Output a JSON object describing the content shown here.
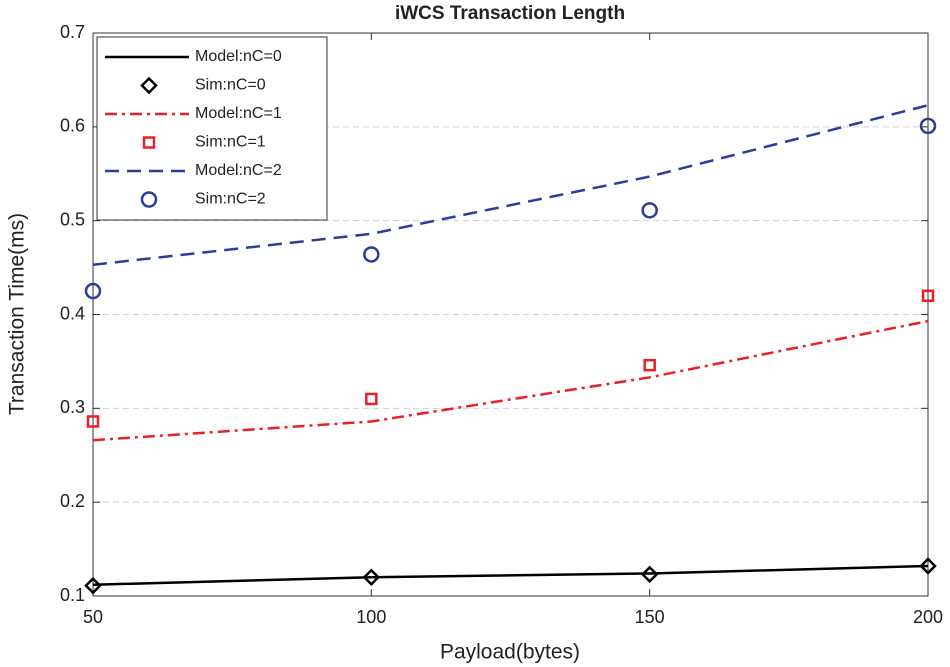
{
  "chart_data": {
    "type": "line",
    "title": "iWCS Transaction Length",
    "xlabel": "Payload(bytes)",
    "ylabel": "Transaction Time(ms)",
    "x": [
      50,
      100,
      150,
      200
    ],
    "xlim": [
      50,
      200
    ],
    "xticks": [
      50,
      100,
      150,
      200
    ],
    "ylim": [
      0.1,
      0.7
    ],
    "yticks": [
      0.1,
      0.2,
      0.3,
      0.4,
      0.5,
      0.6,
      0.7
    ],
    "grid": "y",
    "legend": "upper left",
    "series": [
      {
        "name": "Model:nC=0",
        "color": "#000000",
        "style": "solid",
        "values": [
          0.112,
          0.12,
          0.124,
          0.132
        ]
      },
      {
        "name": "Sim:nC=0",
        "color": "#000000",
        "marker": "diamond",
        "values": [
          0.111,
          0.12,
          0.123,
          0.132
        ]
      },
      {
        "name": "Model:nC=1",
        "color": "#e8202a",
        "style": "dashdot",
        "values": [
          0.266,
          0.286,
          0.333,
          0.393
        ]
      },
      {
        "name": "Sim:nC=1",
        "color": "#e8202a",
        "marker": "square",
        "values": [
          0.286,
          0.31,
          0.346,
          0.42
        ]
      },
      {
        "name": "Model:nC=2",
        "color": "#2a3c9e",
        "style": "dashed",
        "values": [
          0.453,
          0.486,
          0.547,
          0.623
        ]
      },
      {
        "name": "Sim:nC=2",
        "color": "#2a3c9e",
        "marker": "circle",
        "values": [
          0.425,
          0.464,
          0.511,
          0.601
        ]
      }
    ]
  }
}
